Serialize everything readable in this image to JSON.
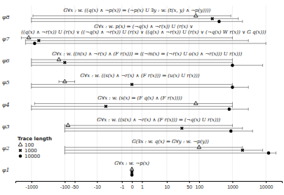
{
  "chart_data": {
    "type": "scatter",
    "orientation": "horizontal",
    "log": "x",
    "grid": true,
    "legend": "bottom-left",
    "legend_title": "Trace length",
    "categories": [
      "φ1",
      "φ2",
      "φ3",
      "φ4",
      "φ5",
      "φ6",
      "φ7",
      "φ8"
    ],
    "formulas": [
      "G∀x : w. ¬p(x)",
      "G(∃x : w. q(x) ⇒ G∀y : w. ¬p(y))",
      "G∀x : w. ((s(x) ∧ ¬r(x) ∧ (F r(x))) ⇒ (¬q(x) U r(x)))",
      "G∀x : w. (s(x) ⇒ (F q(x) ∧ (F r(x))))",
      "G∀x : w. ((s(x) ∧ ¬r(x) ∧ (F r(x))) ⇒ (u(x) U r(x)))",
      "G∀x : w. ((n(x) ∧ ¬r(x) ∧ (F r(x))) ⇒ ((¬m(x) ⇒ (¬r(x) U o(x) ∧ ¬r(x))) U r(x)))",
      [
        "G∀x : w. p(x) ⇒ (¬q(x) ∧ ¬r(x)) U (r(x) ∨",
        "((q(x) ∧ ¬r(x)) U (r(x) ∨ ((¬q(x) ∧ ¬r(x)) U (r(x) ∨ ((q(x) ∧ ¬r(x)) U (r(x) ∨ (¬q(x) W r(x)) ∨ G q(x)))"
      ],
      "G∀x : w. ((q(x) ∧ ¬p(x)) ⇒ (¬p(x) U ∃y : w. (t(x, y) ∧ ¬p(y))))"
    ],
    "series": [
      {
        "name": "100",
        "marker": "triangle",
        "color": "#000000",
        "values": [
          0,
          100,
          -80,
          80,
          -100,
          -150,
          -1200,
          80
        ],
        "lower": [
          0,
          -100,
          -100,
          -800,
          -150,
          -1000,
          -2000,
          -900
        ],
        "upper": [
          0,
          2000,
          1000,
          1000,
          -50,
          1000,
          1000,
          900
        ]
      },
      {
        "name": "1000",
        "marker": "x",
        "color": "#000000",
        "values": [
          0,
          2000,
          30,
          -5,
          0,
          -100,
          -600,
          250
        ],
        "lower": [
          0,
          -100,
          -100,
          -1000,
          -1000,
          -1000,
          -1500,
          -1000
        ],
        "upper": [
          0,
          8000,
          2000,
          1000,
          1000,
          1000,
          3000,
          1500
        ]
      },
      {
        "name": "10000",
        "marker": "circle",
        "color": "#000000",
        "values": [
          0,
          12000,
          900,
          800,
          1000,
          1000,
          -800,
          400
        ],
        "lower": [
          0,
          -100,
          -100,
          -1000,
          -1000,
          -1000,
          -1500,
          -1000
        ],
        "upper": [
          0,
          20000,
          4000,
          3000,
          3000,
          8000,
          10000,
          2000
        ]
      }
    ],
    "xlim": [
      -3000,
      30000
    ],
    "xticks": [
      -1000,
      -100,
      -50,
      -10,
      -1,
      0,
      1,
      10,
      50,
      100,
      1000,
      10000
    ]
  }
}
